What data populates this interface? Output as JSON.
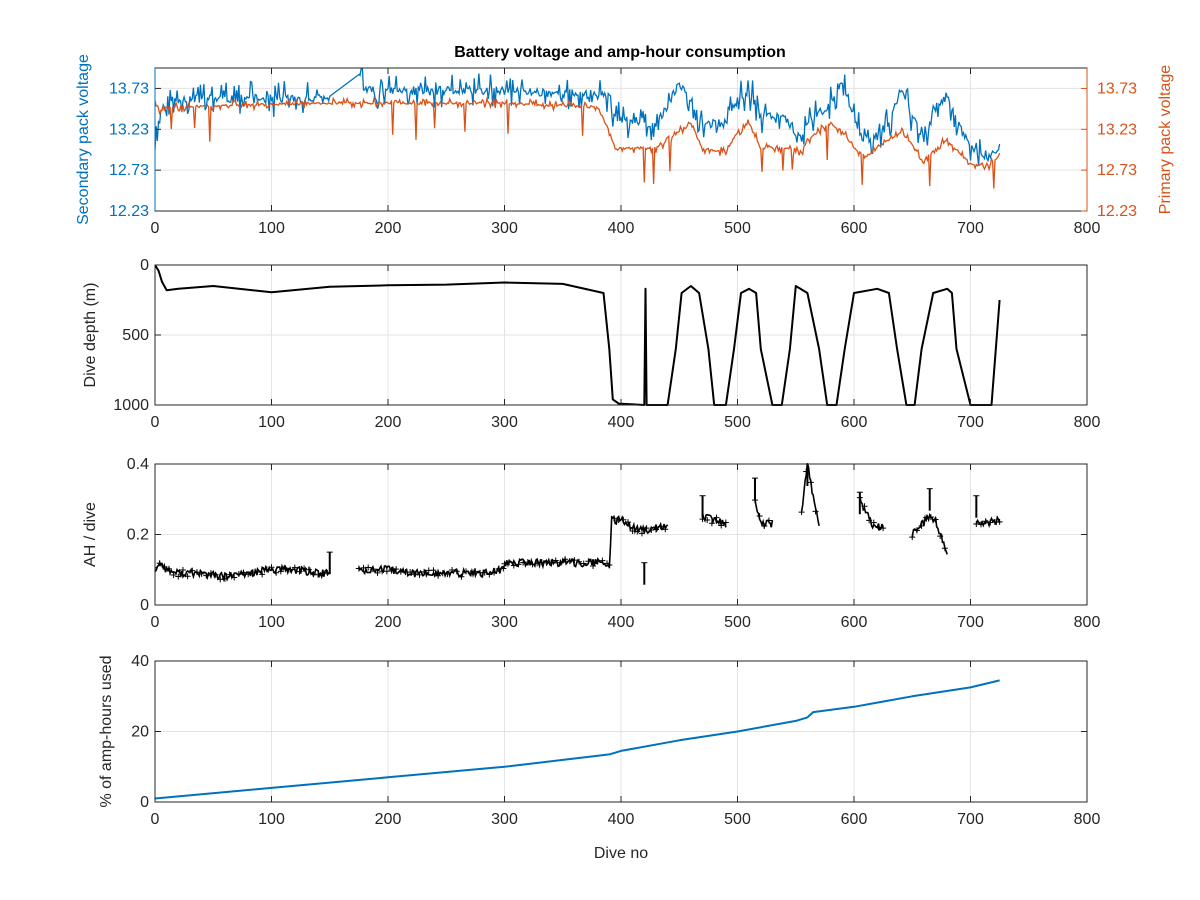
{
  "figure": {
    "title": "Battery voltage and amp-hour consumption",
    "colors": {
      "secondary": "#0072BD",
      "primary": "#D95319",
      "black": "#000000",
      "grid": "#e3e3e3"
    }
  },
  "chart_data": [
    {
      "type": "line",
      "title": "Battery voltage and amp-hour consumption",
      "xlabel": "",
      "ylabel": "Secondary pack voltage",
      "ylabel_right": "Primary pack voltage",
      "xlim": [
        0,
        800
      ],
      "ylim": [
        12.23,
        13.98
      ],
      "ylim_right": [
        12.23,
        13.98
      ],
      "xticks": [
        "0",
        "100",
        "200",
        "300",
        "400",
        "500",
        "600",
        "700",
        "800"
      ],
      "yticks": [
        "12.23",
        "12.73",
        "13.23",
        "13.73"
      ],
      "yticks_right": [
        "12.23",
        "12.73",
        "13.23",
        "13.73"
      ],
      "grid": true,
      "series": [
        {
          "name": "Secondary pack voltage",
          "axis": "left",
          "color": "#0072BD",
          "x": [
            0,
            3,
            5,
            10,
            150,
            175,
            180,
            300,
            390,
            395,
            430,
            440,
            450,
            460,
            470,
            490,
            500,
            510,
            520,
            540,
            555,
            560,
            580,
            590,
            600,
            610,
            630,
            640,
            650,
            660,
            670,
            680,
            690,
            700,
            715,
            725
          ],
          "y": [
            13.0,
            13.2,
            13.45,
            13.6,
            13.6,
            13.9,
            13.7,
            13.7,
            13.65,
            13.35,
            13.3,
            13.5,
            13.8,
            13.6,
            13.3,
            13.3,
            13.6,
            13.7,
            13.4,
            13.4,
            13.1,
            13.3,
            13.55,
            13.8,
            13.4,
            13.0,
            13.3,
            13.7,
            13.4,
            13.1,
            13.5,
            13.6,
            13.3,
            13.0,
            12.85,
            13.05
          ],
          "fluctuation": 0.22
        },
        {
          "name": "Primary pack voltage",
          "axis": "right",
          "color": "#D95319",
          "x": [
            0,
            5,
            10,
            150,
            300,
            380,
            390,
            395,
            430,
            440,
            460,
            470,
            490,
            500,
            510,
            520,
            540,
            555,
            560,
            580,
            590,
            600,
            610,
            630,
            640,
            650,
            660,
            670,
            680,
            690,
            700,
            715,
            725
          ],
          "y": [
            13.55,
            13.45,
            13.5,
            13.55,
            13.55,
            13.5,
            13.2,
            13.0,
            13.0,
            13.1,
            13.3,
            13.0,
            12.95,
            13.2,
            13.3,
            13.0,
            13.0,
            12.95,
            13.1,
            13.3,
            13.2,
            13.0,
            12.9,
            13.1,
            13.2,
            13.05,
            12.8,
            13.0,
            13.1,
            12.95,
            12.8,
            12.78,
            12.9
          ],
          "fluctuation": 0.06
        }
      ]
    },
    {
      "type": "line",
      "xlabel": "",
      "ylabel": "Dive depth (m)",
      "y_reversed": true,
      "xlim": [
        0,
        800
      ],
      "ylim": [
        0,
        1000
      ],
      "xticks": [
        "0",
        "100",
        "200",
        "300",
        "400",
        "500",
        "600",
        "700",
        "800"
      ],
      "yticks": [
        "0",
        "500",
        "1000"
      ],
      "grid": true,
      "series": [
        {
          "color": "#000000",
          "x": [
            0,
            3,
            6,
            10,
            20,
            50,
            100,
            150,
            200,
            250,
            300,
            350,
            385,
            390,
            393,
            398,
            420,
            421,
            422,
            423,
            440,
            447,
            452,
            460,
            467,
            475,
            480,
            490,
            497,
            503,
            510,
            516,
            520,
            530,
            538,
            545,
            550,
            560,
            570,
            577,
            585,
            592,
            600,
            620,
            630,
            637,
            645,
            652,
            658,
            668,
            680,
            684,
            688,
            700,
            718,
            725
          ],
          "y": [
            0,
            40,
            120,
            180,
            170,
            150,
            195,
            155,
            145,
            140,
            125,
            135,
            200,
            600,
            960,
            990,
            1000,
            170,
            1000,
            1000,
            1000,
            600,
            200,
            150,
            200,
            600,
            1000,
            1000,
            600,
            200,
            170,
            200,
            600,
            1000,
            1000,
            600,
            150,
            200,
            600,
            1000,
            1000,
            600,
            200,
            170,
            200,
            600,
            1000,
            1000,
            600,
            200,
            170,
            200,
            600,
            1000,
            1000,
            250
          ]
        }
      ]
    },
    {
      "type": "scatter",
      "xlabel": "",
      "ylabel": "AH / dive",
      "xlim": [
        0,
        800
      ],
      "ylim": [
        0,
        0.4
      ],
      "xticks": [
        "0",
        "100",
        "200",
        "300",
        "400",
        "500",
        "600",
        "700",
        "800"
      ],
      "yticks": [
        "0",
        "0.2",
        "0.4"
      ],
      "grid": true,
      "series": [
        {
          "color": "#000000",
          "segments": [
            {
              "x": [
                0,
                5,
                10,
                20,
                40,
                60,
                80,
                100,
                120,
                140,
                150
              ],
              "y": [
                0.1,
                0.12,
                0.1,
                0.09,
                0.09,
                0.08,
                0.09,
                0.1,
                0.1,
                0.09,
                0.09
              ]
            },
            {
              "x": [
                175,
                200,
                220,
                240,
                260,
                280,
                300
              ],
              "y": [
                0.1,
                0.1,
                0.09,
                0.09,
                0.09,
                0.09,
                0.1
              ]
            },
            {
              "x": [
                300,
                320,
                340,
                360,
                380,
                390
              ],
              "y": [
                0.12,
                0.12,
                0.12,
                0.12,
                0.12,
                0.11
              ]
            },
            {
              "x": [
                390,
                392,
                400,
                410,
                420,
                430,
                440
              ],
              "y": [
                0.11,
                0.24,
                0.24,
                0.22,
                0.21,
                0.22,
                0.22
              ]
            },
            {
              "x": [
                470,
                480,
                490
              ],
              "y": [
                0.25,
                0.24,
                0.23
              ]
            },
            {
              "x": [
                515,
                520,
                530
              ],
              "y": [
                0.3,
                0.23,
                0.23
              ]
            },
            {
              "x": [
                555,
                560,
                570
              ],
              "y": [
                0.26,
                0.4,
                0.22
              ]
            },
            {
              "x": [
                605,
                615,
                625
              ],
              "y": [
                0.3,
                0.23,
                0.22
              ]
            },
            {
              "x": [
                650,
                665,
                670,
                680
              ],
              "y": [
                0.2,
                0.25,
                0.24,
                0.14
              ]
            },
            {
              "x": [
                705,
                710,
                725
              ],
              "y": [
                0.23,
                0.23,
                0.24
              ]
            }
          ],
          "outliers": [
            {
              "x": 150,
              "y": 0.15
            },
            {
              "x": 420,
              "y": 0.12
            },
            {
              "x": 470,
              "y": 0.31
            },
            {
              "x": 515,
              "y": 0.36
            },
            {
              "x": 560,
              "y": 0.4
            },
            {
              "x": 605,
              "y": 0.32
            },
            {
              "x": 665,
              "y": 0.33
            },
            {
              "x": 705,
              "y": 0.31
            }
          ]
        }
      ]
    },
    {
      "type": "line",
      "xlabel": "Dive no",
      "ylabel": "% of amp-hours used",
      "xlim": [
        0,
        800
      ],
      "ylim": [
        0,
        40
      ],
      "xticks": [
        "0",
        "100",
        "200",
        "300",
        "400",
        "500",
        "600",
        "700",
        "800"
      ],
      "yticks": [
        "0",
        "20",
        "40"
      ],
      "grid": true,
      "series": [
        {
          "color": "#0072BD",
          "x": [
            0,
            100,
            200,
            300,
            390,
            400,
            450,
            500,
            550,
            560,
            565,
            600,
            650,
            700,
            725
          ],
          "y": [
            1.0,
            4.0,
            7.0,
            10.0,
            13.5,
            14.5,
            17.5,
            20.0,
            23.0,
            24.0,
            25.5,
            27.0,
            30.0,
            32.5,
            34.5
          ]
        }
      ]
    }
  ]
}
